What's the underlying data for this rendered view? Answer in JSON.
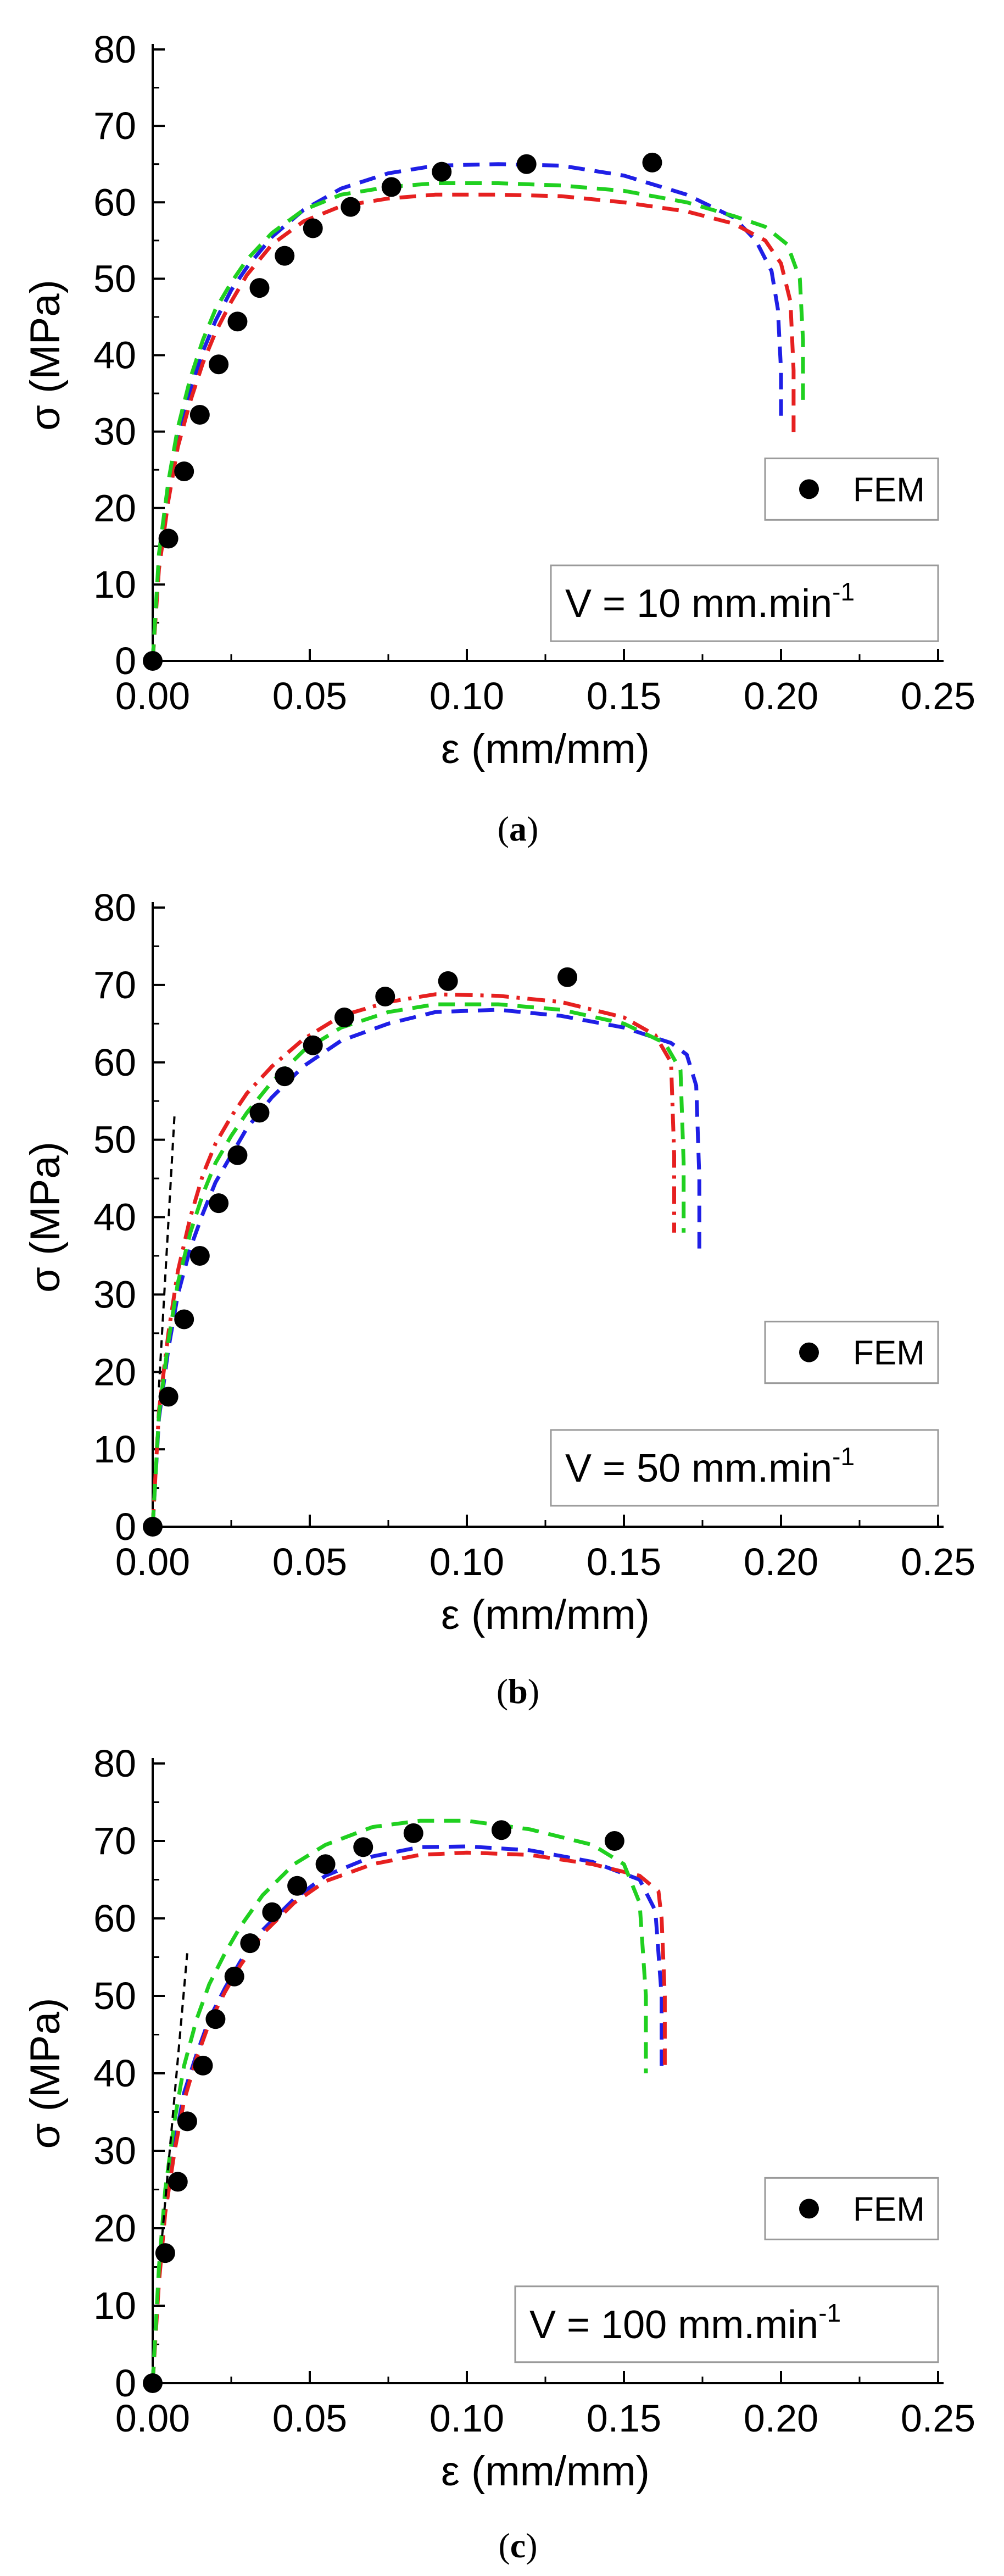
{
  "chart_data": [
    {
      "type": "line",
      "panel": "a",
      "caption": "(a)",
      "caption_letter": "a",
      "xlabel": "ε (mm/mm)",
      "ylabel": "σ (MPa)",
      "xlim": [
        0,
        0.25
      ],
      "ylim": [
        0,
        80
      ],
      "x_ticks": [
        "0.00",
        "0.05",
        "0.10",
        "0.15",
        "0.20",
        "0.25"
      ],
      "y_ticks": [
        "0",
        "10",
        "20",
        "30",
        "40",
        "50",
        "60",
        "70",
        "80"
      ],
      "legend_label": "FEM",
      "annotation": {
        "prefix": "V = 10 mm.min",
        "superscript": "-1"
      },
      "points": {
        "name": "FEM",
        "color": "#000000",
        "x": [
          0.0,
          0.005,
          0.01,
          0.015,
          0.021,
          0.027,
          0.034,
          0.042,
          0.051,
          0.063,
          0.076,
          0.092,
          0.119,
          0.159
        ],
        "y": [
          0,
          16,
          24.8,
          32.2,
          38.8,
          44.4,
          48.8,
          53,
          56.6,
          59.4,
          62,
          64,
          65,
          65.2
        ]
      },
      "series": [
        {
          "name": "blue dashed",
          "color": "#1f1fe6",
          "dash": "dashed",
          "x": [
            0,
            0.002,
            0.005,
            0.008,
            0.012,
            0.016,
            0.02,
            0.025,
            0.03,
            0.038,
            0.048,
            0.06,
            0.075,
            0.09,
            0.11,
            0.13,
            0.15,
            0.17,
            0.185,
            0.192,
            0.197,
            0.199,
            0.2,
            0.2
          ],
          "y": [
            0,
            13,
            22,
            29,
            35.5,
            40.5,
            44.5,
            48.5,
            51.5,
            55.5,
            59,
            61.8,
            63.8,
            64.8,
            65,
            64.8,
            63.5,
            61,
            58,
            55,
            51,
            46,
            38,
            31
          ]
        },
        {
          "name": "red dashed",
          "color": "#e62020",
          "dash": "dashed",
          "x": [
            0,
            0.002,
            0.005,
            0.008,
            0.012,
            0.016,
            0.02,
            0.025,
            0.03,
            0.038,
            0.048,
            0.06,
            0.075,
            0.09,
            0.11,
            0.13,
            0.15,
            0.17,
            0.185,
            0.195,
            0.2,
            0.203,
            0.204,
            0.204
          ],
          "y": [
            0,
            12,
            21,
            28,
            34,
            39,
            43,
            47,
            50.5,
            54.5,
            57.5,
            59.5,
            60.5,
            61,
            61,
            60.8,
            60,
            58.8,
            57.2,
            55,
            52,
            47,
            38,
            29
          ]
        },
        {
          "name": "green dashed",
          "color": "#20d020",
          "dash": "dashed",
          "x": [
            0,
            0.002,
            0.005,
            0.008,
            0.012,
            0.016,
            0.02,
            0.025,
            0.03,
            0.038,
            0.048,
            0.06,
            0.075,
            0.09,
            0.11,
            0.13,
            0.15,
            0.17,
            0.185,
            0.195,
            0.202,
            0.206,
            0.207,
            0.207
          ],
          "y": [
            0,
            14,
            23.5,
            30.5,
            37,
            42,
            46,
            49.5,
            52.5,
            56,
            59,
            61,
            62,
            62.5,
            62.5,
            62.2,
            61.5,
            60,
            58.2,
            56.8,
            54.5,
            50,
            42,
            34
          ]
        }
      ]
    },
    {
      "type": "line",
      "panel": "b",
      "caption": "(b)",
      "caption_letter": "b",
      "xlabel": "ε (mm/mm)",
      "ylabel": "σ (MPa)",
      "xlim": [
        0,
        0.25
      ],
      "ylim": [
        0,
        80
      ],
      "x_ticks": [
        "0.00",
        "0.05",
        "0.10",
        "0.15",
        "0.20",
        "0.25"
      ],
      "y_ticks": [
        "0",
        "10",
        "20",
        "30",
        "40",
        "50",
        "60",
        "70",
        "80"
      ],
      "legend_label": "FEM",
      "annotation": {
        "prefix": "V = 50 mm.min",
        "superscript": "-1"
      },
      "points": {
        "name": "FEM",
        "color": "#000000",
        "x": [
          0.0,
          0.005,
          0.01,
          0.015,
          0.021,
          0.027,
          0.034,
          0.042,
          0.051,
          0.061,
          0.074,
          0.094,
          0.132
        ],
        "y": [
          0,
          16.8,
          26.8,
          35,
          41.8,
          48,
          53.5,
          58.2,
          62.2,
          65.8,
          68.5,
          70.5,
          71
        ]
      },
      "series": [
        {
          "name": "blue dashed",
          "color": "#1f1fe6",
          "dash": "dashed",
          "x": [
            0,
            0.002,
            0.005,
            0.008,
            0.012,
            0.016,
            0.02,
            0.025,
            0.03,
            0.038,
            0.048,
            0.06,
            0.075,
            0.09,
            0.11,
            0.13,
            0.15,
            0.165,
            0.17,
            0.173,
            0.174,
            0.174
          ],
          "y": [
            0,
            14,
            23,
            30,
            36,
            40.5,
            44.5,
            48,
            51.5,
            55.5,
            59.5,
            62.8,
            65,
            66.5,
            66.8,
            66,
            64.5,
            62.5,
            61,
            57,
            45,
            35
          ]
        },
        {
          "name": "red dash-dot",
          "color": "#e62020",
          "dash": "dashdot",
          "x": [
            0,
            0.002,
            0.005,
            0.008,
            0.012,
            0.016,
            0.02,
            0.025,
            0.03,
            0.038,
            0.048,
            0.06,
            0.075,
            0.09,
            0.11,
            0.13,
            0.15,
            0.16,
            0.165,
            0.166,
            0.166
          ],
          "y": [
            0,
            15,
            25,
            33,
            40,
            45.5,
            49.5,
            53,
            56,
            59.5,
            63,
            66,
            67.8,
            68.8,
            68.6,
            67.8,
            65.8,
            63.5,
            60,
            48,
            38
          ]
        },
        {
          "name": "green dashed",
          "color": "#20d020",
          "dash": "dashed",
          "x": [
            0,
            0.002,
            0.005,
            0.008,
            0.012,
            0.016,
            0.02,
            0.025,
            0.03,
            0.038,
            0.048,
            0.06,
            0.075,
            0.09,
            0.11,
            0.13,
            0.15,
            0.163,
            0.168,
            0.169,
            0.169
          ],
          "y": [
            0,
            14.5,
            24,
            31.5,
            38,
            43,
            47,
            50.5,
            53.5,
            57.5,
            61.5,
            64.5,
            66.5,
            67.5,
            67.5,
            66.8,
            65,
            62.5,
            59,
            47,
            38
          ]
        },
        {
          "name": "black dashed tangent",
          "color": "#000000",
          "dash": "dashed",
          "x": [
            0.002,
            0.007
          ],
          "y": [
            18,
            53.5
          ]
        }
      ]
    },
    {
      "type": "line",
      "panel": "c",
      "caption": "(c)",
      "caption_letter": "c",
      "xlabel": "ε (mm/mm)",
      "ylabel": "σ (MPa)",
      "xlim": [
        0,
        0.25
      ],
      "ylim": [
        0,
        80
      ],
      "x_ticks": [
        "0.00",
        "0.05",
        "0.10",
        "0.15",
        "0.20",
        "0.25"
      ],
      "y_ticks": [
        "0",
        "10",
        "20",
        "30",
        "40",
        "50",
        "60",
        "70",
        "80"
      ],
      "legend_label": "FEM",
      "annotation": {
        "prefix": "V = 100 mm.min",
        "superscript": "-1"
      },
      "points": {
        "name": "FEM",
        "color": "#000000",
        "x": [
          0.0,
          0.004,
          0.008,
          0.011,
          0.016,
          0.02,
          0.026,
          0.031,
          0.038,
          0.046,
          0.055,
          0.067,
          0.083,
          0.111,
          0.147
        ],
        "y": [
          0,
          16.8,
          26,
          33.8,
          41,
          47,
          52.5,
          56.8,
          60.8,
          64.2,
          67,
          69.2,
          71,
          71.4,
          70
        ]
      },
      "series": [
        {
          "name": "blue dashed",
          "color": "#1f1fe6",
          "dash": "dashed",
          "x": [
            0,
            0.002,
            0.004,
            0.007,
            0.01,
            0.014,
            0.018,
            0.023,
            0.028,
            0.035,
            0.045,
            0.055,
            0.07,
            0.085,
            0.1,
            0.12,
            0.14,
            0.155,
            0.16,
            0.162,
            0.162
          ],
          "y": [
            0,
            14,
            23,
            31,
            37.5,
            42.5,
            47,
            51,
            54.5,
            58.5,
            62.5,
            65.5,
            68,
            69.2,
            69.3,
            68.8,
            67.3,
            65,
            61,
            50,
            40
          ]
        },
        {
          "name": "red dashed",
          "color": "#e62020",
          "dash": "dashed",
          "x": [
            0,
            0.002,
            0.004,
            0.007,
            0.01,
            0.014,
            0.018,
            0.023,
            0.028,
            0.035,
            0.045,
            0.055,
            0.07,
            0.085,
            0.1,
            0.12,
            0.14,
            0.155,
            0.161,
            0.162,
            0.163,
            0.163
          ],
          "y": [
            0,
            13,
            22,
            30,
            36.5,
            42,
            46.5,
            50.5,
            54,
            58,
            62,
            64.8,
            67,
            68.2,
            68.5,
            68.2,
            67,
            65.5,
            63.5,
            60,
            50,
            40
          ]
        },
        {
          "name": "green dashed",
          "color": "#20d020",
          "dash": "dashed",
          "x": [
            0,
            0.002,
            0.004,
            0.007,
            0.01,
            0.014,
            0.018,
            0.023,
            0.028,
            0.035,
            0.045,
            0.055,
            0.07,
            0.085,
            0.1,
            0.12,
            0.14,
            0.15,
            0.155,
            0.157,
            0.157
          ],
          "y": [
            0,
            15,
            25,
            34,
            41,
            47,
            51.5,
            55.5,
            59,
            63,
            67,
            69.5,
            71.8,
            72.6,
            72.6,
            71.5,
            69.5,
            67,
            62,
            50,
            40
          ]
        },
        {
          "name": "black dashed tangent",
          "color": "#000000",
          "dash": "dashed",
          "x": [
            0.003,
            0.011
          ],
          "y": [
            19,
            55.5
          ]
        }
      ]
    }
  ]
}
